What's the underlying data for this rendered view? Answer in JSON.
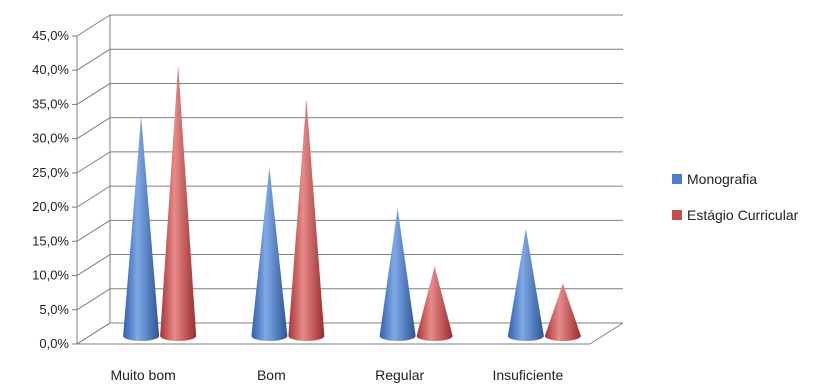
{
  "chart_data": {
    "type": "bar",
    "style": "3d-cone",
    "categories": [
      "Muito bom",
      "Bom",
      "Regular",
      "Insuficiente"
    ],
    "series": [
      {
        "name": "Monografia",
        "values": [
          34.5,
          27.0,
          21.0,
          18.0
        ],
        "color": "#4a7fd0"
      },
      {
        "name": "Estágio Curricular",
        "values": [
          42.0,
          37.0,
          12.5,
          10.0
        ],
        "color": "#c94a4a"
      }
    ],
    "yticks": [
      "0,0%",
      "5,0%",
      "10,0%",
      "15,0%",
      "20,0%",
      "25,0%",
      "30,0%",
      "35,0%",
      "40,0%",
      "45,0%"
    ],
    "ylim": [
      0,
      45
    ],
    "grid": true,
    "legend": "right"
  }
}
